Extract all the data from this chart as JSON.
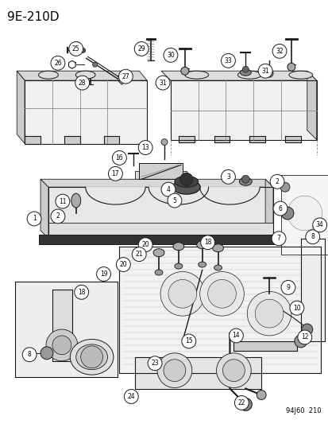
{
  "title_top_left": "9E-210D",
  "bottom_right_code": "94J60  210",
  "background_color": "#ffffff",
  "line_color": "#1a1a1a",
  "text_color": "#000000",
  "title_fontsize": 11,
  "code_fontsize": 6,
  "fig_width": 4.14,
  "fig_height": 5.33,
  "dpi": 100
}
